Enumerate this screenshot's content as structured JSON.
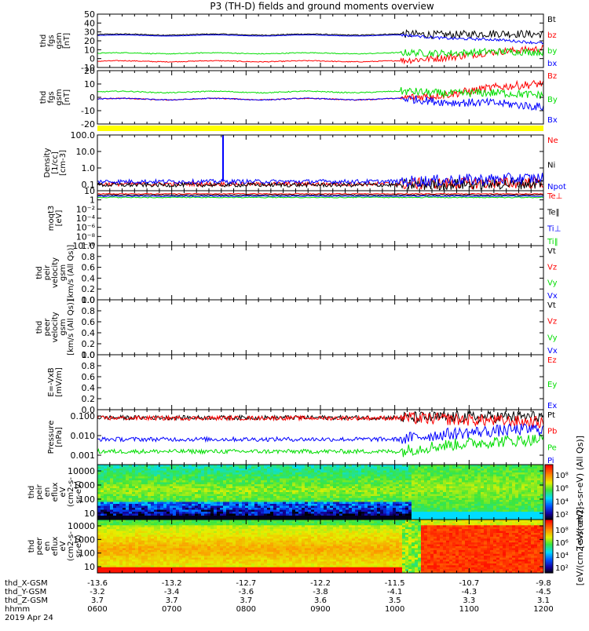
{
  "title": "P3 (TH-D) fields and ground moments overview",
  "colors": {
    "black": "#000000",
    "red": "#ff0000",
    "green": "#00dd00",
    "blue": "#0000ff",
    "yellow": "#ffff00"
  },
  "chart_data": [
    {
      "type": "line",
      "panel": "fgs",
      "ylabel": [
        "thd",
        "fgs",
        "gsm",
        "[nT]"
      ],
      "ylim": [
        -10,
        50
      ],
      "yticks": [
        "50",
        "40",
        "30",
        "20",
        "10",
        "0",
        "-10"
      ],
      "series": [
        {
          "name": "Bt",
          "color": "#000000",
          "level": 27,
          "late": 28,
          "noise": 9
        },
        {
          "name": "bz",
          "color": "#ff0000",
          "level": -3,
          "late": 12,
          "noise": 8
        },
        {
          "name": "by",
          "color": "#00dd00",
          "level": 6,
          "late": 8,
          "noise": 8
        },
        {
          "name": "bx",
          "color": "#0000ff",
          "level": 26,
          "late": 18,
          "noise": 3
        }
      ]
    },
    {
      "type": "line",
      "panel": "fgs-gsm",
      "ylabel": [
        "thd",
        "fgs",
        "gsm",
        "[nT]"
      ],
      "ylim": [
        -25,
        20
      ],
      "yticks": [
        "20",
        "10",
        "0",
        "-10",
        "-20"
      ],
      "series": [
        {
          "name": "Bz",
          "color": "#ff0000",
          "level": -4,
          "late": 10,
          "noise": 7
        },
        {
          "name": "By",
          "color": "#00dd00",
          "level": 2,
          "late": 0,
          "noise": 7
        },
        {
          "name": "Bx",
          "color": "#0000ff",
          "level": -4,
          "late": -10,
          "noise": 7
        }
      ]
    },
    {
      "type": "line",
      "panel": "density",
      "scale": "log",
      "ylabel": [
        "Density",
        "[1/cc]",
        "[cm-3]"
      ],
      "ylim": [
        0.1,
        200
      ],
      "yticks": [
        "100.0",
        "10.0",
        "1.0",
        "0.1"
      ],
      "series": [
        {
          "name": "Ne",
          "color": "#ff0000",
          "level": 0.25,
          "late": 0.3
        },
        {
          "name": "Ni",
          "color": "#000000",
          "level": 0.22,
          "late": 0.28
        },
        {
          "name": "Npot",
          "color": "#0000ff",
          "level": 0.35,
          "late": 0.55
        }
      ]
    },
    {
      "type": "line",
      "panel": "moqt3",
      "scale": "log",
      "ylabel": [
        "moqt3",
        "[eV]"
      ],
      "yticks": [
        "10",
        "1",
        "10⁻²",
        "10⁻⁴",
        "10⁻⁶",
        "10⁻⁸",
        "10⁻¹⁰"
      ],
      "series": [
        {
          "name": "Te⊥",
          "color": "#ff0000"
        },
        {
          "name": "Te‖",
          "color": "#000000"
        },
        {
          "name": "Ti⊥",
          "color": "#0000ff"
        },
        {
          "name": "Ti‖",
          "color": "#00dd00"
        }
      ]
    },
    {
      "type": "line",
      "panel": "peir-velocity",
      "ylabel": [
        "thd",
        "peir",
        "velocity",
        "gsm",
        "[km/s (All Qs)]"
      ],
      "ylim": [
        0,
        1
      ],
      "yticks": [
        "1.0",
        "0.8",
        "0.6",
        "0.4",
        "0.2",
        "0.0"
      ],
      "series": [
        {
          "name": "Vt",
          "color": "#000000"
        },
        {
          "name": "Vz",
          "color": "#ff0000"
        },
        {
          "name": "Vy",
          "color": "#00dd00"
        },
        {
          "name": "Vx",
          "color": "#0000ff"
        }
      ]
    },
    {
      "type": "line",
      "panel": "peer-velocity",
      "ylabel": [
        "thd",
        "peer",
        "velocity",
        "gsm",
        "[km/s (All Qs)]"
      ],
      "ylim": [
        0,
        1
      ],
      "yticks": [
        "1.0",
        "0.8",
        "0.6",
        "0.4",
        "0.2",
        "0.0"
      ],
      "series": [
        {
          "name": "Vt",
          "color": "#000000"
        },
        {
          "name": "Vz",
          "color": "#ff0000"
        },
        {
          "name": "Vy",
          "color": "#00dd00"
        },
        {
          "name": "Vx",
          "color": "#0000ff"
        }
      ]
    },
    {
      "type": "line",
      "panel": "efield",
      "ylabel": [
        "E=-VxB",
        "[mV/m]"
      ],
      "ylim": [
        0,
        1
      ],
      "yticks": [
        "1.0",
        "0.8",
        "0.6",
        "0.4",
        "0.2",
        "0.0"
      ],
      "series": [
        {
          "name": "Ez",
          "color": "#ff0000"
        },
        {
          "name": "Ey",
          "color": "#00dd00"
        },
        {
          "name": "Ex",
          "color": "#0000ff"
        }
      ]
    },
    {
      "type": "line",
      "panel": "pressure",
      "scale": "log",
      "ylabel": [
        "Pressure",
        "[nPa]"
      ],
      "yticks": [
        "0.100",
        "0.010",
        "0.001"
      ],
      "series": [
        {
          "name": "Pt",
          "color": "#000000",
          "level": 0.35,
          "late": 0.4
        },
        {
          "name": "Pb",
          "color": "#ff0000",
          "level": 0.33,
          "late": 0.18
        },
        {
          "name": "Pe",
          "color": "#00dd00",
          "level": 0.004,
          "late": 0.02
        },
        {
          "name": "Pi",
          "color": "#0000ff",
          "level": 0.02,
          "late": 0.08
        }
      ]
    },
    {
      "type": "heatmap",
      "panel": "peir-eflux",
      "ylabel": [
        "thd",
        "peir",
        "en",
        "eflux",
        "eV",
        "(cm2-s-",
        "sr-eV)"
      ],
      "yticks": [
        "10000",
        "1000",
        "100",
        "10"
      ],
      "colorbar": {
        "ticks": [
          "10⁸",
          "10⁶",
          "10⁴",
          "10²"
        ],
        "label": "[eV/(cm2-s-sr-eV) (All Qs)]"
      }
    },
    {
      "type": "heatmap",
      "panel": "peer-eflux",
      "ylabel": [
        "thd",
        "peer",
        "en",
        "eflux",
        "eV",
        "(cm2-s-",
        "sr-eV)"
      ],
      "yticks": [
        "10000",
        "1000",
        "100",
        "10"
      ],
      "colorbar": {
        "ticks": [
          "10⁸",
          "10⁶",
          "10⁴",
          "10²"
        ],
        "label": "[eV/(cm2-s-sr-eV)]"
      }
    }
  ],
  "x_axis": {
    "rows": [
      {
        "label": "thd_X-GSM",
        "values": [
          "-13.6",
          "-13.2",
          "-12.7",
          "-12.2",
          "-11.5",
          "-10.7",
          "-9.8"
        ]
      },
      {
        "label": "thd_Y-GSM",
        "values": [
          "-3.2",
          "-3.4",
          "-3.6",
          "-3.8",
          "-4.1",
          "-4.3",
          "-4.5"
        ]
      },
      {
        "label": "thd_Z-GSM",
        "values": [
          "3.7",
          "3.7",
          "3.7",
          "3.6",
          "3.5",
          "3.3",
          "3.1"
        ]
      },
      {
        "label": "hhmm",
        "values": [
          "0600",
          "0700",
          "0800",
          "0900",
          "1000",
          "1100",
          "1200"
        ]
      }
    ],
    "date": "2019 Apr 24",
    "range": [
      "0600",
      "1200"
    ]
  }
}
